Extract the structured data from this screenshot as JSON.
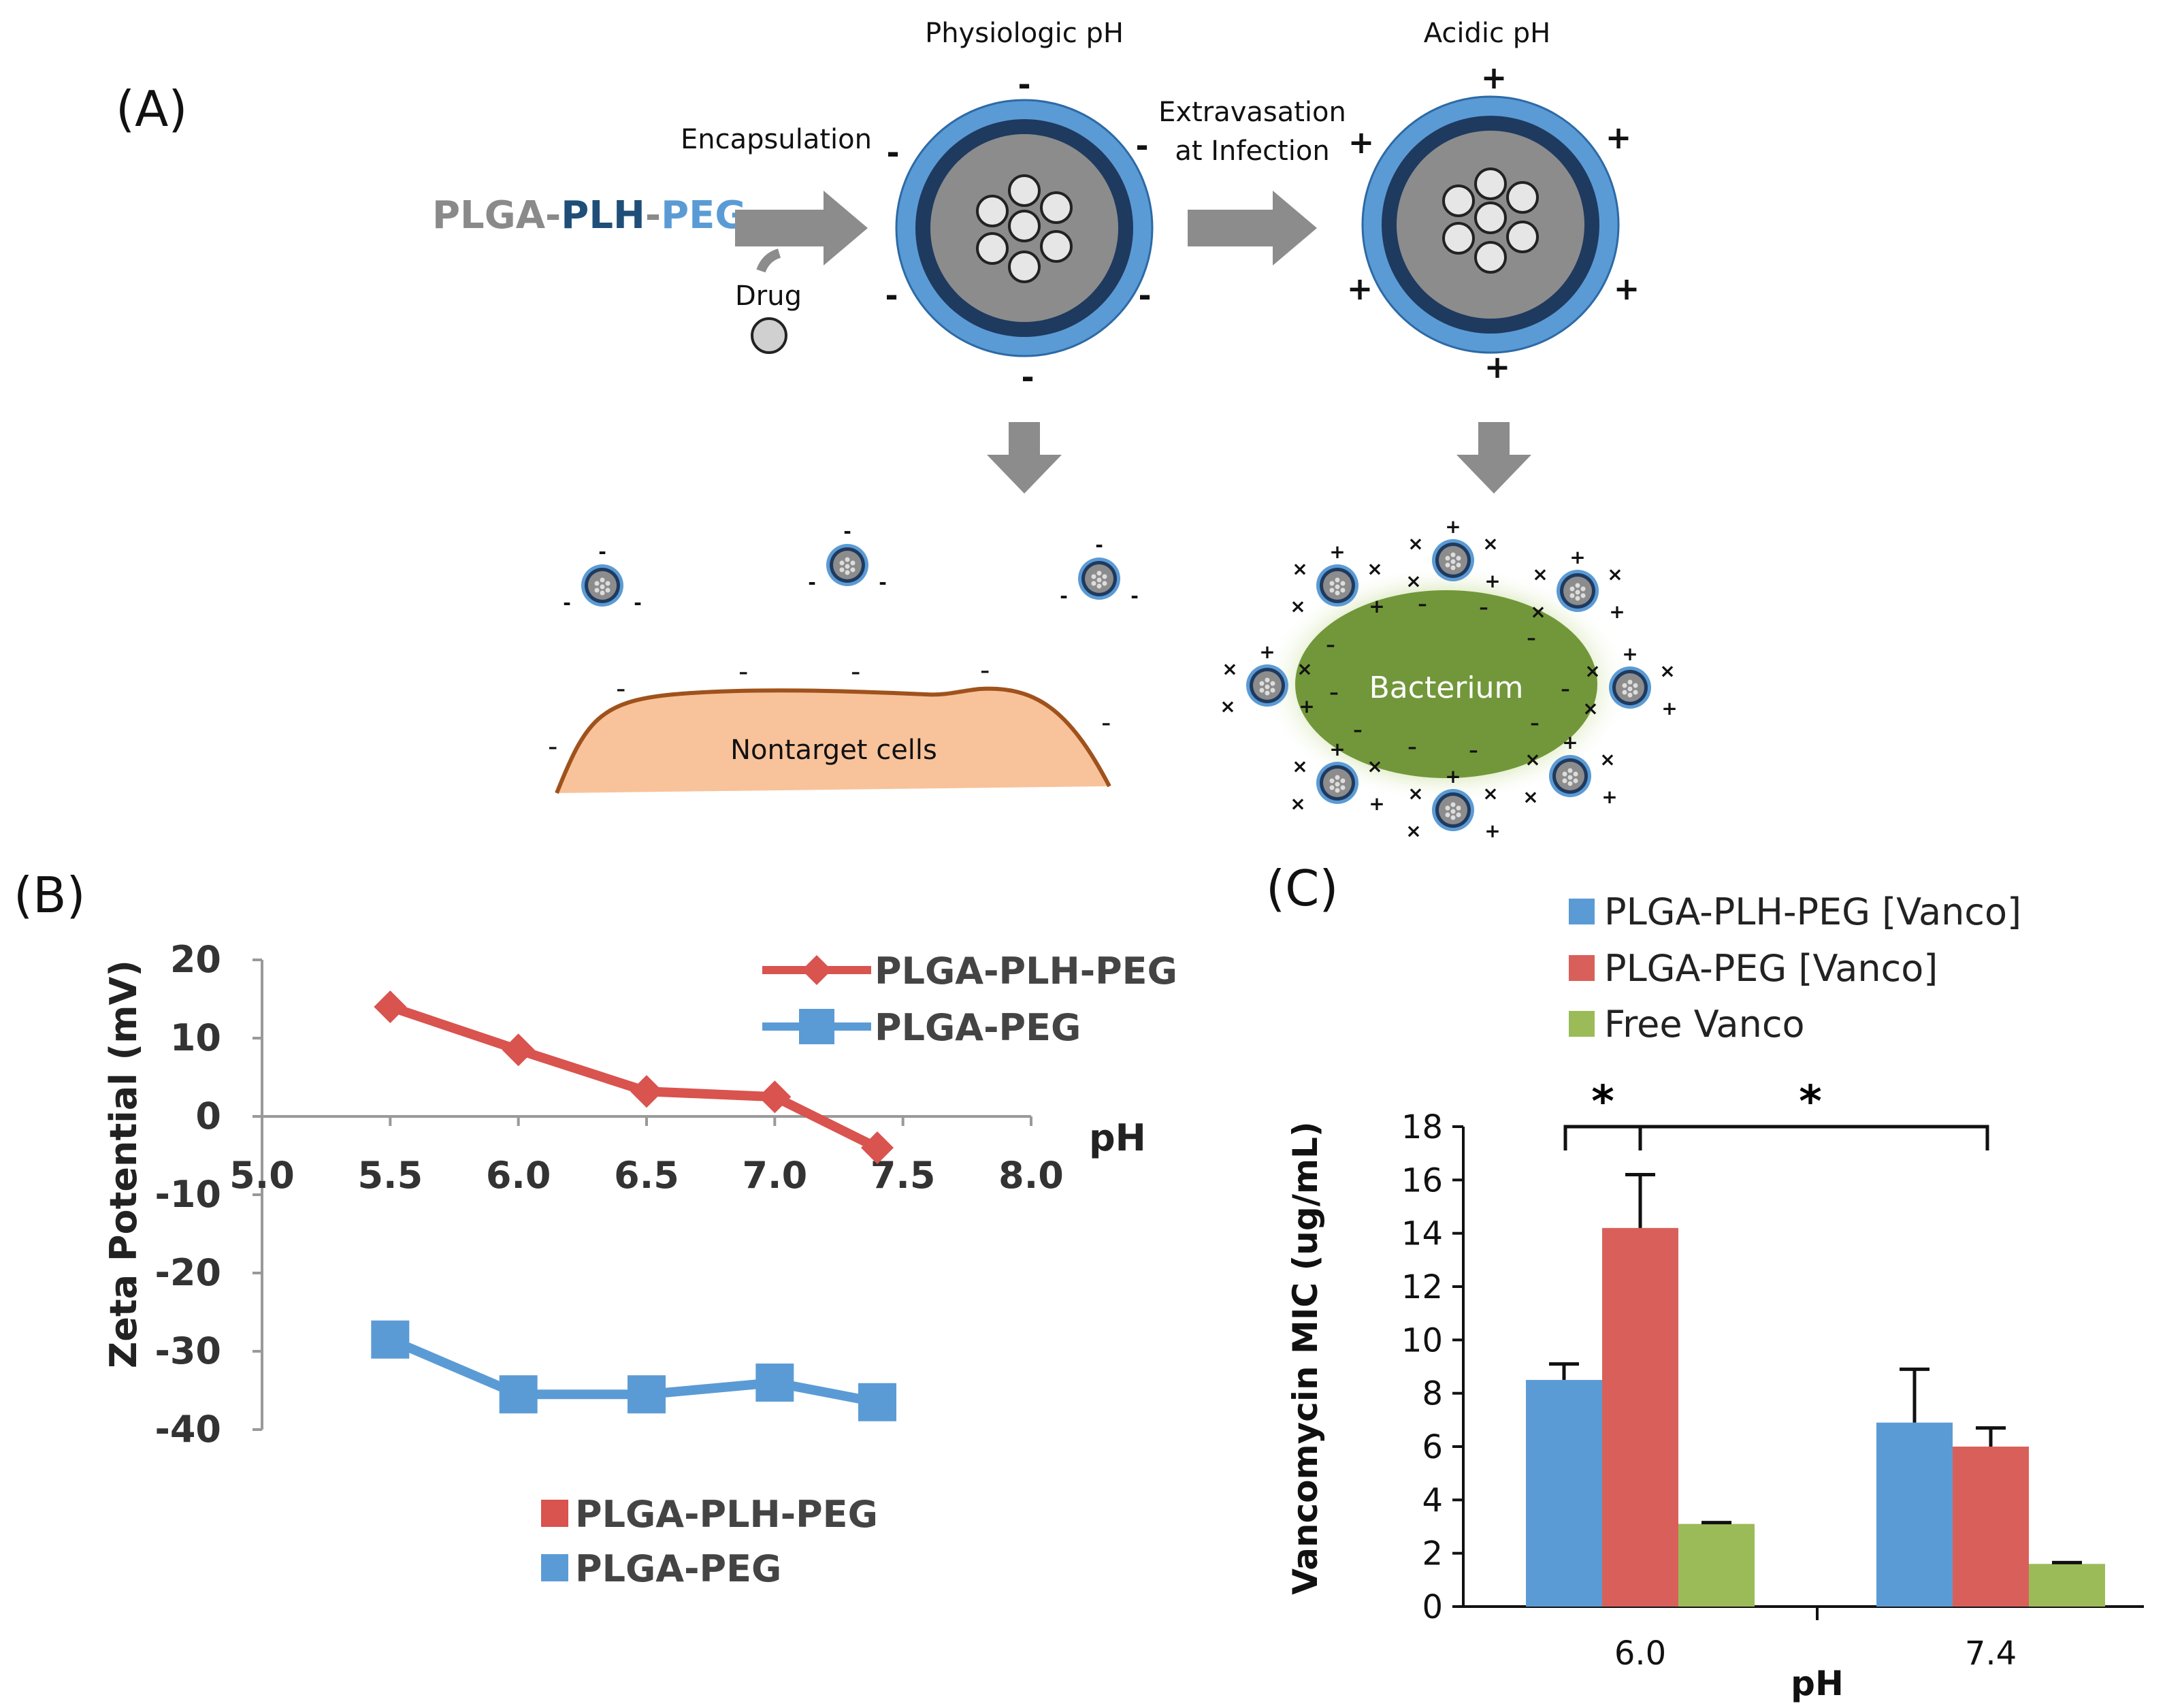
{
  "panel_a": {
    "label": "(A)",
    "polymer_parts": [
      "PLGA",
      "PLH",
      "PEG"
    ],
    "polymer_colors": {
      "PLGA": "#8a8a8a",
      "PLH": "#1f4e79",
      "PEG": "#5b9bd5"
    },
    "encapsulation": "Encapsulation",
    "drug": "Drug",
    "physiologic_ph": "Physiologic pH",
    "acidic_ph": "Acidic pH",
    "extravasation_line1": "Extravasation",
    "extravasation_line2": "at Infection",
    "nontarget": "Nontarget cells",
    "bacterium": "Bacterium",
    "minus": "-",
    "plus": "+",
    "cross": "×"
  },
  "panel_b": {
    "label": "(B)",
    "ylabel": "Zeta Potential (mV)",
    "xlabel": "pH",
    "top_legend": [
      "PLGA-PLH-PEG",
      "PLGA-PEG"
    ],
    "bottom_legend": [
      "PLGA-PLH-PEG",
      "PLGA-PEG"
    ]
  },
  "panel_c": {
    "label": "(C)",
    "ylabel": "Vancomycin MIC (ug/mL)",
    "xlabel": "pH",
    "significance": [
      "*",
      "*"
    ],
    "legend": [
      "PLGA-PLH-PEG [Vanco]",
      "PLGA-PEG [Vanco]",
      "Free Vanco"
    ]
  },
  "chart_data": [
    {
      "type": "line",
      "panel": "B",
      "title": "",
      "xlabel": "pH",
      "ylabel": "Zeta Potential (mV)",
      "xlim": [
        5.0,
        8.0
      ],
      "ylim": [
        -40,
        20
      ],
      "xticks": [
        "5.0",
        "5.5",
        "6.0",
        "6.5",
        "7.0",
        "7.5",
        "8.0"
      ],
      "yticks": [
        "20",
        "10",
        "0",
        "-10",
        "-20",
        "-30",
        "-40"
      ],
      "series": [
        {
          "name": "PLGA-PLH-PEG",
          "color": "#d9534f",
          "marker": "diamond",
          "x": [
            5.5,
            6.0,
            6.5,
            7.0,
            7.4
          ],
          "y": [
            14,
            8.5,
            3.2,
            2.5,
            -4
          ]
        },
        {
          "name": "PLGA-PEG",
          "color": "#5b9bd5",
          "marker": "square",
          "x": [
            5.5,
            6.0,
            6.5,
            7.0,
            7.4
          ],
          "y": [
            -28.5,
            -35.5,
            -35.5,
            -34,
            -36.5
          ]
        }
      ]
    },
    {
      "type": "bar",
      "panel": "C",
      "title": "",
      "xlabel": "pH",
      "ylabel": "Vancomycin MIC (ug/mL)",
      "ylim": [
        0,
        18
      ],
      "yticks": [
        "0",
        "2",
        "4",
        "6",
        "8",
        "10",
        "12",
        "14",
        "16",
        "18"
      ],
      "categories": [
        "6.0",
        "7.4"
      ],
      "series": [
        {
          "name": "PLGA-PLH-PEG [Vanco]",
          "color": "#5b9bd5",
          "values": [
            8.5,
            6.9
          ],
          "errors": [
            0.6,
            2.0
          ]
        },
        {
          "name": "PLGA-PEG [Vanco]",
          "color": "#d9605a",
          "values": [
            14.2,
            6.0
          ],
          "errors": [
            2.0,
            0.7
          ]
        },
        {
          "name": "Free Vanco",
          "color": "#9bbb59",
          "values": [
            3.1,
            1.6
          ],
          "errors": [
            0.05,
            0.05
          ]
        }
      ]
    }
  ]
}
